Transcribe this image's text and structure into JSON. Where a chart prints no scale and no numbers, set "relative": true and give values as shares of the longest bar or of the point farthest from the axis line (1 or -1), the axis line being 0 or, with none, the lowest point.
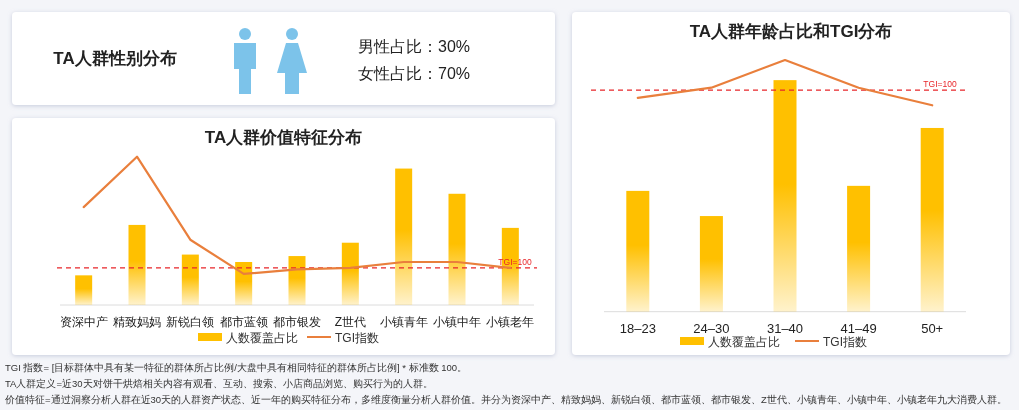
{
  "chart_data": [
    {
      "type": "other",
      "title": "TA人群性别分布",
      "annotations": [
        "男性占比：30%",
        "女性占比：70%"
      ]
    },
    {
      "type": "bar",
      "title": "TA人群年龄占比和TGI分布",
      "relative": true,
      "legend": "bottom",
      "categories": [
        "18–23",
        "24–30",
        "31–40",
        "41–49",
        "50+"
      ],
      "series": [
        {
          "name": "人数覆盖占比",
          "color": "#ffc000",
          "values": [
            0.48,
            0.38,
            0.92,
            0.5,
            0.73
          ]
        },
        {
          "name": "TGI指数",
          "type": "line",
          "color": "#e97f3c",
          "values": [
            0.85,
            0.89,
            1,
            0.89,
            0.82
          ]
        }
      ],
      "ref_lines": [
        {
          "axis": "y",
          "value": 0.88,
          "color": "#e8262a",
          "line_style": "dashed"
        }
      ],
      "annotations": [
        "TGI=100"
      ]
    },
    {
      "type": "bar",
      "title": "TA人群价值特征分布",
      "relative": true,
      "legend": "bottom",
      "categories": [
        "资深中产",
        "精致妈妈",
        "新锐白领",
        "都市蓝领",
        "都市银发",
        "Z世代",
        "小镇青年",
        "小镇中年",
        "小镇老年"
      ],
      "series": [
        {
          "name": "人数覆盖占比",
          "color": "#ffc000",
          "values": [
            0.2,
            0.54,
            0.34,
            0.29,
            0.33,
            0.42,
            0.92,
            0.75,
            0.52
          ]
        },
        {
          "name": "TGI指数",
          "type": "line",
          "color": "#e97f3c",
          "values": [
            0.66,
            1,
            0.44,
            0.21,
            0.24,
            0.25,
            0.29,
            0.29,
            0.25
          ]
        }
      ],
      "ref_lines": [
        {
          "axis": "y",
          "value": 0.25,
          "color": "#e8262a",
          "line_style": "dashed"
        }
      ],
      "annotations": [
        "TGI=100"
      ]
    },
    {
      "type": "other",
      "annotations": [
        "TGI 指数= [目标群体中具有某一特征的群体所占比例/大盘中具有相同特征的群体所占比例] * 标准数 100。",
        "TA人群定义=近30天对饼干烘焙相关内容有观看、互动、搜索、小店商品浏览、购买行为的人群。",
        "价值特征=通过洞察分析人群在近30天的人群资产状态、近一年的购买特征分布，多维度衡量分析人群价值。并分为资深中产、精致妈妈、新锐白领、都市蓝领、都市银发、Z世代、小镇青年、小镇中年、小镇老年九大消费人群。"
      ]
    }
  ]
}
